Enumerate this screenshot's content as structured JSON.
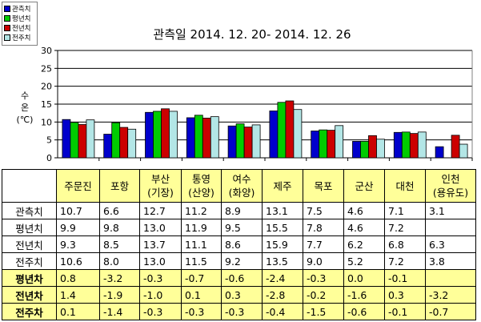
{
  "title": "관측일 2014. 12. 20-  2014. 12. 26",
  "ylabel_lines": [
    "수",
    "온",
    "(℃)"
  ],
  "legend": [
    {
      "label": "관측치",
      "color": "#0000cc"
    },
    {
      "label": "평년치",
      "color": "#00cc00"
    },
    {
      "label": "전년치",
      "color": "#cc0000"
    },
    {
      "label": "전주치",
      "color": "#b3e6e6"
    }
  ],
  "chart_data": {
    "type": "bar",
    "categories": [
      "주문진",
      "포항",
      "부산\n(기장)",
      "통영\n(산양)",
      "여수\n(화양)",
      "제주",
      "목포",
      "군산",
      "대천",
      "인천\n(용유도)"
    ],
    "series": [
      {
        "name": "관측치",
        "values": [
          10.7,
          6.6,
          12.7,
          11.2,
          8.9,
          13.1,
          7.5,
          4.6,
          7.1,
          3.1
        ]
      },
      {
        "name": "평년치",
        "values": [
          9.9,
          9.8,
          13.0,
          11.9,
          9.5,
          15.5,
          7.8,
          4.6,
          7.2,
          null
        ]
      },
      {
        "name": "전년치",
        "values": [
          9.3,
          8.5,
          13.7,
          11.1,
          8.6,
          15.9,
          7.7,
          6.2,
          6.8,
          6.3
        ]
      },
      {
        "name": "전주치",
        "values": [
          10.6,
          8.0,
          13.0,
          11.5,
          9.2,
          13.5,
          9.0,
          5.2,
          7.2,
          3.8
        ]
      }
    ],
    "ylim": [
      0,
      30
    ],
    "yticks": [
      "0",
      "5",
      "10",
      "15",
      "20",
      "25",
      "30"
    ],
    "grid": true
  },
  "table": {
    "rows": [
      {
        "label": "관측치",
        "values": [
          "10.7",
          "6.6",
          "12.7",
          "11.2",
          "8.9",
          "13.1",
          "7.5",
          "4.6",
          "7.1",
          "3.1"
        ],
        "diff": false
      },
      {
        "label": "평년치",
        "values": [
          "9.9",
          "9.8",
          "13.0",
          "11.9",
          "9.5",
          "15.5",
          "7.8",
          "4.6",
          "7.2",
          ""
        ],
        "diff": false
      },
      {
        "label": "전년치",
        "values": [
          "9.3",
          "8.5",
          "13.7",
          "11.1",
          "8.6",
          "15.9",
          "7.7",
          "6.2",
          "6.8",
          "6.3"
        ],
        "diff": false
      },
      {
        "label": "전주치",
        "values": [
          "10.6",
          "8.0",
          "13.0",
          "11.5",
          "9.2",
          "13.5",
          "9.0",
          "5.2",
          "7.2",
          "3.8"
        ],
        "diff": false
      },
      {
        "label": "평년차",
        "values": [
          "0.8",
          "-3.2",
          "-0.3",
          "-0.7",
          "-0.6",
          "-2.4",
          "-0.3",
          "0.0",
          "-0.1",
          ""
        ],
        "diff": true
      },
      {
        "label": "전년차",
        "values": [
          "1.4",
          "-1.9",
          "-1.0",
          "0.1",
          "0.3",
          "-2.8",
          "-0.2",
          "-1.6",
          "0.3",
          "-3.2"
        ],
        "diff": true
      },
      {
        "label": "전주차",
        "values": [
          "0.1",
          "-1.4",
          "-0.3",
          "-0.3",
          "-0.3",
          "-0.4",
          "-1.5",
          "-0.6",
          "-0.1",
          "-0.7"
        ],
        "diff": true
      }
    ]
  }
}
